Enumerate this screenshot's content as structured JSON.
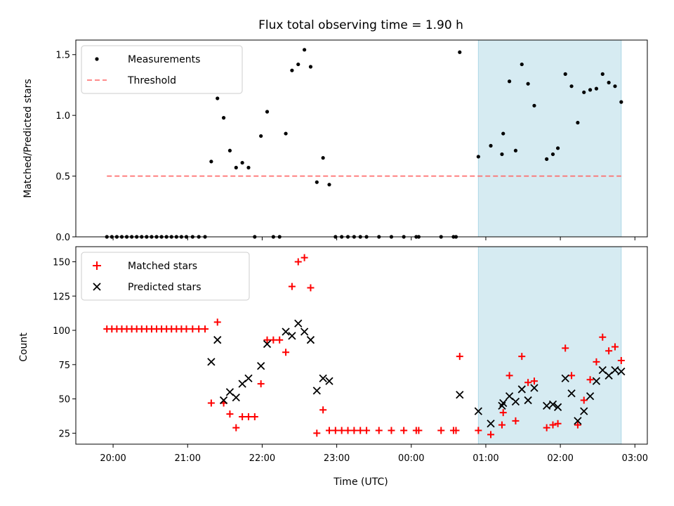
{
  "chart_data": [
    {
      "type": "scatter",
      "title": "Flux total observing time = 1.90 h",
      "xlabel": "",
      "ylabel": "Matched/Predicted stars",
      "ylim": [
        0,
        1.62
      ],
      "yticks": [
        "0.0",
        "0.5",
        "1.0",
        "1.5"
      ],
      "ytick_values": [
        0,
        0.5,
        1.0,
        1.5
      ],
      "legend": {
        "placement": "top-left",
        "entries": [
          "Measurements",
          "Threshold"
        ]
      },
      "highlight_region": {
        "from": "00:54",
        "to": "02:49",
        "color": "#add8e6"
      },
      "threshold": {
        "name": "Threshold",
        "value": 0.5,
        "from": "19:55",
        "to": "02:49",
        "color": "#ff6666"
      },
      "series": [
        {
          "name": "Measurements",
          "color": "#000000",
          "points": [
            [
              "19:55",
              0
            ],
            [
              "19:59",
              0
            ],
            [
              "20:03",
              0
            ],
            [
              "20:07",
              0
            ],
            [
              "20:11",
              0
            ],
            [
              "20:15",
              0
            ],
            [
              "20:19",
              0
            ],
            [
              "20:23",
              0
            ],
            [
              "20:27",
              0
            ],
            [
              "20:31",
              0
            ],
            [
              "20:35",
              0
            ],
            [
              "20:39",
              0
            ],
            [
              "20:43",
              0
            ],
            [
              "20:47",
              0
            ],
            [
              "20:51",
              0
            ],
            [
              "20:55",
              0
            ],
            [
              "20:59",
              0
            ],
            [
              "21:04",
              0
            ],
            [
              "21:09",
              0
            ],
            [
              "21:14",
              0
            ],
            [
              "21:19",
              0.62
            ],
            [
              "21:24",
              1.14
            ],
            [
              "21:29",
              0.98
            ],
            [
              "21:34",
              0.71
            ],
            [
              "21:39",
              0.57
            ],
            [
              "21:44",
              0.61
            ],
            [
              "21:49",
              0.57
            ],
            [
              "21:54",
              0
            ],
            [
              "21:59",
              0.83
            ],
            [
              "22:04",
              1.03
            ],
            [
              "22:09",
              0
            ],
            [
              "22:14",
              0
            ],
            [
              "22:19",
              0.85
            ],
            [
              "22:24",
              1.37
            ],
            [
              "22:29",
              1.42
            ],
            [
              "22:34",
              1.54
            ],
            [
              "22:39",
              1.4
            ],
            [
              "22:44",
              0.45
            ],
            [
              "22:49",
              0.65
            ],
            [
              "22:54",
              0.43
            ],
            [
              "22:59",
              0
            ],
            [
              "23:04",
              0
            ],
            [
              "23:09",
              0
            ],
            [
              "23:14",
              0
            ],
            [
              "23:19",
              0
            ],
            [
              "23:24",
              0
            ],
            [
              "23:34",
              0
            ],
            [
              "23:44",
              0
            ],
            [
              "23:54",
              0
            ],
            [
              "00:04",
              0
            ],
            [
              "00:06",
              0
            ],
            [
              "00:24",
              0
            ],
            [
              "00:34",
              0
            ],
            [
              "00:36",
              0
            ],
            [
              "00:39",
              1.52
            ],
            [
              "00:54",
              0.66
            ],
            [
              "01:04",
              0.75
            ],
            [
              "01:13",
              0.68
            ],
            [
              "01:14",
              0.85
            ],
            [
              "01:19",
              1.28
            ],
            [
              "01:24",
              0.71
            ],
            [
              "01:29",
              1.42
            ],
            [
              "01:34",
              1.26
            ],
            [
              "01:39",
              1.08
            ],
            [
              "01:49",
              0.64
            ],
            [
              "01:54",
              0.68
            ],
            [
              "01:58",
              0.73
            ],
            [
              "02:04",
              1.34
            ],
            [
              "02:09",
              1.24
            ],
            [
              "02:14",
              0.94
            ],
            [
              "02:19",
              1.19
            ],
            [
              "02:24",
              1.21
            ],
            [
              "02:29",
              1.22
            ],
            [
              "02:34",
              1.34
            ],
            [
              "02:39",
              1.27
            ],
            [
              "02:44",
              1.24
            ],
            [
              "02:49",
              1.11
            ]
          ]
        }
      ]
    },
    {
      "type": "scatter",
      "title": "",
      "xlabel": "Time (UTC)",
      "ylabel": "Count",
      "ylim": [
        17,
        161
      ],
      "yticks": [
        "25",
        "50",
        "75",
        "100",
        "125",
        "150"
      ],
      "ytick_values": [
        25,
        50,
        75,
        100,
        125,
        150
      ],
      "xlim": [
        "19:30",
        "03:10"
      ],
      "xticks": [
        "20:00",
        "21:00",
        "22:00",
        "23:00",
        "00:00",
        "01:00",
        "02:00",
        "03:00"
      ],
      "legend": {
        "placement": "top-left",
        "entries": [
          "Matched stars",
          "Predicted stars"
        ]
      },
      "highlight_region": {
        "from": "00:54",
        "to": "02:49",
        "color": "#add8e6"
      },
      "series": [
        {
          "name": "Matched stars",
          "marker": "plus",
          "color": "#ff0000",
          "points": [
            [
              "19:55",
              101
            ],
            [
              "19:59",
              101
            ],
            [
              "20:03",
              101
            ],
            [
              "20:07",
              101
            ],
            [
              "20:11",
              101
            ],
            [
              "20:15",
              101
            ],
            [
              "20:19",
              101
            ],
            [
              "20:23",
              101
            ],
            [
              "20:27",
              101
            ],
            [
              "20:31",
              101
            ],
            [
              "20:35",
              101
            ],
            [
              "20:39",
              101
            ],
            [
              "20:43",
              101
            ],
            [
              "20:47",
              101
            ],
            [
              "20:51",
              101
            ],
            [
              "20:55",
              101
            ],
            [
              "20:59",
              101
            ],
            [
              "21:04",
              101
            ],
            [
              "21:09",
              101
            ],
            [
              "21:14",
              101
            ],
            [
              "21:19",
              47
            ],
            [
              "21:24",
              106
            ],
            [
              "21:29",
              47
            ],
            [
              "21:34",
              39
            ],
            [
              "21:39",
              29
            ],
            [
              "21:44",
              37
            ],
            [
              "21:49",
              37
            ],
            [
              "21:54",
              37
            ],
            [
              "21:59",
              61
            ],
            [
              "22:04",
              93
            ],
            [
              "22:09",
              93
            ],
            [
              "22:14",
              93
            ],
            [
              "22:19",
              84
            ],
            [
              "22:24",
              132
            ],
            [
              "22:29",
              150
            ],
            [
              "22:34",
              153
            ],
            [
              "22:39",
              131
            ],
            [
              "22:44",
              25
            ],
            [
              "22:49",
              42
            ],
            [
              "22:54",
              27
            ],
            [
              "22:59",
              27
            ],
            [
              "23:04",
              27
            ],
            [
              "23:09",
              27
            ],
            [
              "23:14",
              27
            ],
            [
              "23:19",
              27
            ],
            [
              "23:24",
              27
            ],
            [
              "23:34",
              27
            ],
            [
              "23:44",
              27
            ],
            [
              "23:54",
              27
            ],
            [
              "00:04",
              27
            ],
            [
              "00:06",
              27
            ],
            [
              "00:24",
              27
            ],
            [
              "00:34",
              27
            ],
            [
              "00:36",
              27
            ],
            [
              "00:39",
              81
            ],
            [
              "00:54",
              27
            ],
            [
              "01:04",
              24
            ],
            [
              "01:13",
              31
            ],
            [
              "01:14",
              40
            ],
            [
              "01:19",
              67
            ],
            [
              "01:24",
              34
            ],
            [
              "01:29",
              81
            ],
            [
              "01:34",
              62
            ],
            [
              "01:39",
              63
            ],
            [
              "01:49",
              29
            ],
            [
              "01:54",
              31
            ],
            [
              "01:58",
              32
            ],
            [
              "02:04",
              87
            ],
            [
              "02:09",
              67
            ],
            [
              "02:14",
              31
            ],
            [
              "02:19",
              49
            ],
            [
              "02:24",
              64
            ],
            [
              "02:29",
              77
            ],
            [
              "02:34",
              95
            ],
            [
              "02:39",
              85
            ],
            [
              "02:44",
              88
            ],
            [
              "02:49",
              78
            ]
          ]
        },
        {
          "name": "Predicted stars",
          "marker": "x",
          "color": "#000000",
          "points": [
            [
              "21:19",
              77
            ],
            [
              "21:24",
              93
            ],
            [
              "21:29",
              49
            ],
            [
              "21:34",
              55
            ],
            [
              "21:39",
              51
            ],
            [
              "21:44",
              61
            ],
            [
              "21:49",
              65
            ],
            [
              "21:59",
              74
            ],
            [
              "22:04",
              90
            ],
            [
              "22:19",
              99
            ],
            [
              "22:24",
              96
            ],
            [
              "22:29",
              105
            ],
            [
              "22:34",
              99
            ],
            [
              "22:39",
              93
            ],
            [
              "22:44",
              56
            ],
            [
              "22:49",
              65
            ],
            [
              "22:54",
              63
            ],
            [
              "00:39",
              53
            ],
            [
              "00:54",
              41
            ],
            [
              "01:04",
              32
            ],
            [
              "01:13",
              45
            ],
            [
              "01:14",
              47
            ],
            [
              "01:19",
              52
            ],
            [
              "01:24",
              48
            ],
            [
              "01:29",
              57
            ],
            [
              "01:34",
              49
            ],
            [
              "01:39",
              58
            ],
            [
              "01:49",
              45
            ],
            [
              "01:54",
              46
            ],
            [
              "01:58",
              44
            ],
            [
              "02:04",
              65
            ],
            [
              "02:09",
              54
            ],
            [
              "02:14",
              34
            ],
            [
              "02:19",
              41
            ],
            [
              "02:24",
              52
            ],
            [
              "02:29",
              63
            ],
            [
              "02:34",
              71
            ],
            [
              "02:39",
              67
            ],
            [
              "02:44",
              71
            ],
            [
              "02:49",
              70
            ]
          ]
        }
      ]
    }
  ]
}
